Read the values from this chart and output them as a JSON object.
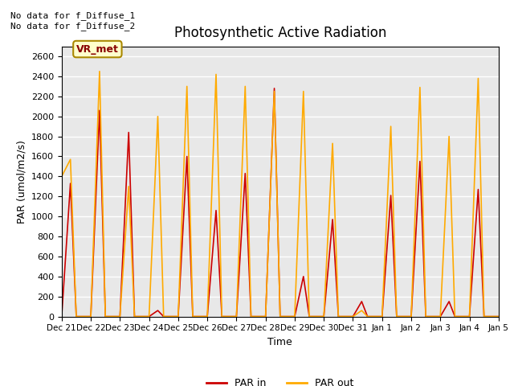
{
  "title": "Photosynthetic Active Radiation",
  "ylabel": "PAR (umol/m2/s)",
  "xlabel": "Time",
  "annotation_text": "No data for f_Diffuse_1\nNo data for f_Diffuse_2",
  "box_label": "VR_met",
  "legend_labels": [
    "PAR in",
    "PAR out"
  ],
  "par_in_color": "#cc0000",
  "par_out_color": "#ffaa00",
  "plot_bg_color": "#e8e8e8",
  "fig_bg_color": "#ffffff",
  "ylim": [
    0,
    2700
  ],
  "yticks": [
    0,
    200,
    400,
    600,
    800,
    1000,
    1200,
    1400,
    1600,
    1800,
    2000,
    2200,
    2400,
    2600
  ],
  "x_labels": [
    "Dec 21",
    "Dec 22",
    "Dec 23",
    "Dec 24",
    "Dec 25",
    "Dec 26",
    "Dec 27",
    "Dec 28",
    "Dec 29",
    "Dec 30",
    "Dec 31",
    "Jan 1",
    "Jan 2",
    "Jan 3",
    "Jan 4",
    "Jan 5"
  ],
  "par_in_x": [
    0,
    0.3,
    0.5,
    1.0,
    1.3,
    1.5,
    2.0,
    2.3,
    2.5,
    3.0,
    3.3,
    3.5,
    4.0,
    4.3,
    4.5,
    5.0,
    5.3,
    5.5,
    6.0,
    6.3,
    6.5,
    7.0,
    7.3,
    7.5,
    8.0,
    8.3,
    8.5,
    9.0,
    9.3,
    9.5,
    10.0,
    10.3,
    10.5,
    11.0,
    11.3,
    11.5,
    12.0,
    12.3,
    12.5,
    13.0,
    13.3,
    13.5,
    14.0,
    14.3,
    14.5,
    15.0
  ],
  "par_in_y": [
    0,
    1330,
    0,
    0,
    2060,
    0,
    0,
    1840,
    0,
    0,
    60,
    0,
    0,
    1600,
    0,
    0,
    1060,
    0,
    0,
    1430,
    0,
    0,
    2280,
    0,
    0,
    400,
    0,
    0,
    970,
    0,
    0,
    150,
    0,
    0,
    1210,
    0,
    0,
    1550,
    0,
    0,
    150,
    0,
    0,
    1270,
    0,
    0
  ],
  "par_out_x": [
    0,
    0.3,
    0.5,
    1.0,
    1.3,
    1.5,
    2.0,
    2.3,
    2.5,
    3.0,
    3.3,
    3.5,
    4.0,
    4.3,
    4.5,
    5.0,
    5.3,
    5.5,
    6.0,
    6.3,
    6.5,
    7.0,
    7.3,
    7.5,
    8.0,
    8.3,
    8.5,
    9.0,
    9.3,
    9.5,
    10.0,
    10.3,
    10.5,
    11.0,
    11.3,
    11.5,
    12.0,
    12.3,
    12.5,
    13.0,
    13.3,
    13.5,
    14.0,
    14.3,
    14.5,
    15.0
  ],
  "par_out_y": [
    1400,
    1570,
    0,
    0,
    2450,
    0,
    0,
    1300,
    0,
    0,
    2000,
    0,
    0,
    2300,
    0,
    0,
    2420,
    0,
    0,
    2300,
    0,
    0,
    2250,
    0,
    0,
    2250,
    0,
    0,
    1730,
    0,
    0,
    60,
    0,
    0,
    1900,
    0,
    0,
    2290,
    0,
    0,
    1800,
    0,
    0,
    2380,
    0,
    0
  ]
}
